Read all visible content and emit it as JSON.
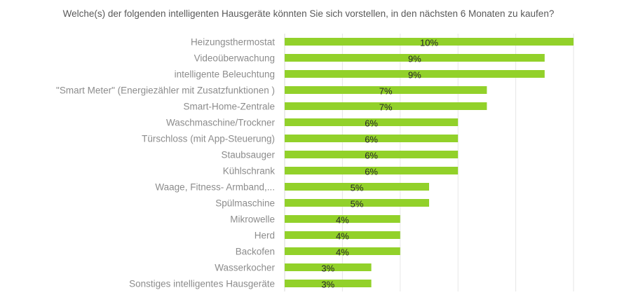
{
  "chart_data": {
    "type": "bar",
    "orientation": "horizontal",
    "title": "Welche(s) der folgenden intelligenten Hausgeräte könnten Sie sich vorstellen, in den nächsten 6 Monaten zu kaufen?",
    "categories": [
      "Heizungsthermostat",
      "Videoüberwachung",
      "intelligente Beleuchtung",
      "\"Smart Meter\" (Energiezähler  mit Zusatzfunktionen )",
      "Smart-Home-Zentrale",
      "Waschmaschine/Trockner",
      "Türschloss (mit App-Steuerung)",
      "Staubsauger",
      "Kühlschrank",
      "Waage, Fitness- Armband,...",
      "Spülmaschine",
      "Mikrowelle",
      "Herd",
      "Backofen",
      "Wasserkocher",
      "Sonstiges intelligentes Hausgeräte"
    ],
    "values": [
      10,
      9,
      9,
      7,
      7,
      6,
      6,
      6,
      6,
      5,
      5,
      4,
      4,
      4,
      3,
      3
    ],
    "labels": [
      "10%",
      "9%",
      "9%",
      "7%",
      "7%",
      "6%",
      "6%",
      "6%",
      "6%",
      "5%",
      "5%",
      "4%",
      "4%",
      "4%",
      "3%",
      "3%"
    ],
    "xlim": [
      0,
      10
    ],
    "grid": true,
    "legend": "none",
    "bar_color": "#92d12a"
  }
}
